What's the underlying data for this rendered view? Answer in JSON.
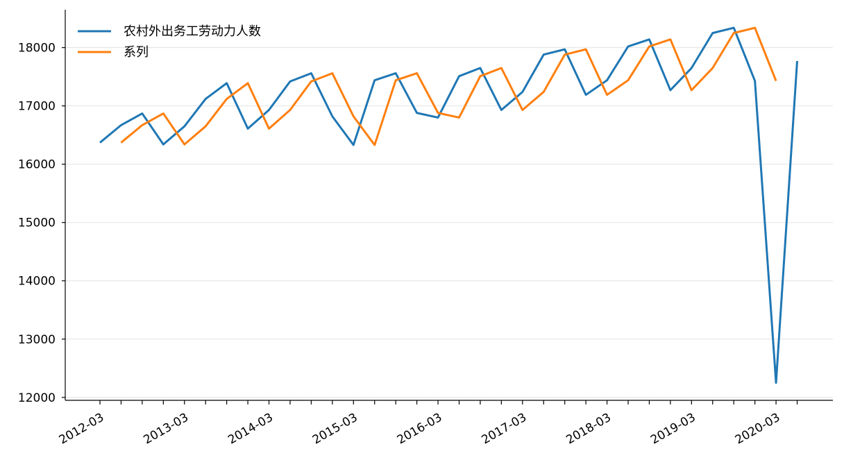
{
  "chart_data": {
    "type": "line",
    "title": "",
    "xlabel": "",
    "ylabel": "",
    "ylim": [
      11950,
      18650
    ],
    "y_ticks": [
      12000,
      13000,
      14000,
      15000,
      16000,
      17000,
      18000
    ],
    "x_tick_labels": [
      "2012-03",
      "2013-03",
      "2014-03",
      "2015-03",
      "2016-03",
      "2017-03",
      "2018-03",
      "2019-03",
      "2020-03"
    ],
    "x": [
      "2012-03",
      "2012-06",
      "2012-09",
      "2012-12",
      "2013-03",
      "2013-06",
      "2013-09",
      "2013-12",
      "2014-03",
      "2014-06",
      "2014-09",
      "2014-12",
      "2015-03",
      "2015-06",
      "2015-09",
      "2015-12",
      "2016-03",
      "2016-06",
      "2016-09",
      "2016-12",
      "2017-03",
      "2017-06",
      "2017-09",
      "2017-12",
      "2018-03",
      "2018-06",
      "2018-09",
      "2018-12",
      "2019-03",
      "2019-06",
      "2019-09",
      "2019-12",
      "2020-03",
      "2020-06"
    ],
    "grid": "horizontal",
    "legend_position": "top-left",
    "series": [
      {
        "name": "农村外出务工劳动力人数",
        "color": "#1f77b4",
        "values": [
          16370,
          16670,
          16870,
          16340,
          16650,
          17120,
          17390,
          16610,
          16930,
          17420,
          17560,
          16820,
          16330,
          17440,
          17560,
          16880,
          16800,
          17510,
          17650,
          16930,
          17240,
          17880,
          17970,
          17190,
          17440,
          18020,
          18140,
          17270,
          17650,
          18250,
          18340,
          17430,
          12250,
          17770
        ]
      },
      {
        "name": "系列",
        "color": "#ff7f0e",
        "values": [
          null,
          16370,
          16670,
          16870,
          16340,
          16650,
          17120,
          17390,
          16610,
          16930,
          17420,
          17560,
          16820,
          16330,
          17440,
          17560,
          16880,
          16800,
          17510,
          17650,
          16930,
          17240,
          17880,
          17970,
          17190,
          17440,
          18020,
          18140,
          17270,
          17650,
          18250,
          18340,
          17430,
          null
        ]
      }
    ]
  }
}
